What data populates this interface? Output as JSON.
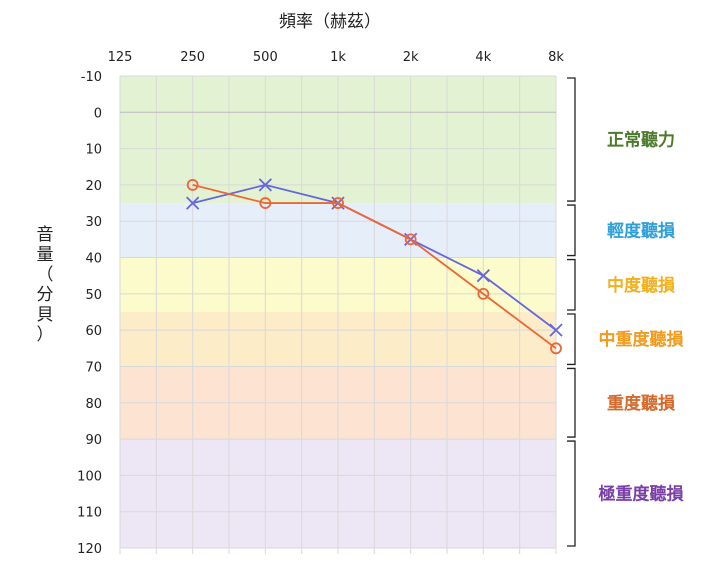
{
  "chart_data": {
    "type": "line",
    "xlabel": "頻率（赫茲）",
    "ylabel": "音量（分貝）",
    "x_tick_labels": [
      "125",
      "250",
      "500",
      "1k",
      "2k",
      "4k",
      "8k"
    ],
    "y_ticks": [
      -10,
      0,
      10,
      20,
      30,
      40,
      50,
      60,
      70,
      80,
      90,
      100,
      110,
      120
    ],
    "ylim": [
      -10,
      120
    ],
    "y_inverted": true,
    "grid": true,
    "series": [
      {
        "marker": "x",
        "color": "#6666dd",
        "x": [
          "250",
          "500",
          "1k",
          "2k",
          "4k",
          "8k"
        ],
        "values": [
          25,
          20,
          25,
          35,
          45,
          60
        ]
      },
      {
        "marker": "o",
        "color": "#ee6633",
        "x": [
          "250",
          "500",
          "1k",
          "2k",
          "4k",
          "8k"
        ],
        "values": [
          20,
          25,
          25,
          35,
          50,
          65
        ]
      }
    ],
    "bands": [
      {
        "label": "正常聽力",
        "from": -10,
        "to": 25,
        "fill": "#e2f2d3",
        "text_color": "#4b7a2b"
      },
      {
        "label": "輕度聽損",
        "from": 25,
        "to": 40,
        "fill": "#e6eefa",
        "text_color": "#2f9fd8"
      },
      {
        "label": "中度聽損",
        "from": 40,
        "to": 55,
        "fill": "#fbfbcc",
        "text_color": "#f2b01e"
      },
      {
        "label": "中重度聽損",
        "from": 55,
        "to": 70,
        "fill": "#fdecc8",
        "text_color": "#f39a1c"
      },
      {
        "label": "重度聽損",
        "from": 70,
        "to": 90,
        "fill": "#fce3d2",
        "text_color": "#d5682a"
      },
      {
        "label": "極重度聽損",
        "from": 90,
        "to": 120,
        "fill": "#ece6f5",
        "text_color": "#7a3fa6"
      }
    ]
  }
}
